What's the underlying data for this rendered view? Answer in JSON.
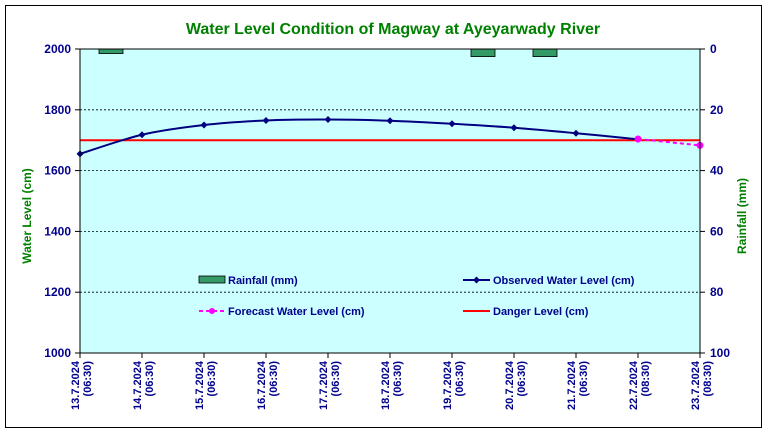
{
  "chart_data": {
    "type": "line",
    "title": "Water Level Condition of Magway at Ayeyarwady River",
    "ylabel": "Water Level (cm)",
    "y2label": "Rainfall (mm)",
    "ylim": [
      1000,
      2000
    ],
    "y2lim": [
      0,
      100
    ],
    "y2_inverted": true,
    "yticks": [
      "1000",
      "1200",
      "1400",
      "1600",
      "1800",
      "2000"
    ],
    "y2ticks": [
      "0",
      "20",
      "40",
      "60",
      "80",
      "100"
    ],
    "categories": [
      "13.7.2024 (06:30)",
      "14.7.2024 (06:30)",
      "15.7.2024 (06:30)",
      "16.7.2024 (06:30)",
      "17.7.2024 (06:30)",
      "18.7.2024 (06:30)",
      "19.7.2024 (06:30)",
      "20.7.2024 (06:30)",
      "21.7.2024 (06:30)",
      "22.7.2024 (08:30)",
      "23.7.2024 (08:30)"
    ],
    "series": [
      {
        "name": "Rainfall (mm)",
        "type": "bar",
        "axis": "right",
        "values": [
          0,
          1.5,
          0,
          0,
          0,
          0,
          0,
          2.5,
          2.5,
          0,
          0
        ]
      },
      {
        "name": "Observed Water Level (cm)",
        "type": "line",
        "values": [
          1655,
          1718,
          1750,
          1765,
          1768,
          1764,
          1754,
          1741,
          1723,
          1703,
          null
        ]
      },
      {
        "name": "Forecast Water Level (cm)",
        "type": "line",
        "dashed": true,
        "values": [
          null,
          null,
          null,
          null,
          null,
          null,
          null,
          null,
          null,
          1704,
          1683
        ]
      },
      {
        "name": "Danger Level (cm)",
        "type": "hline",
        "value": 1700
      }
    ],
    "grid": "horizontal dashed",
    "legend_position": "inside-bottom",
    "colors": {
      "plot_bg": "#ccffff",
      "title": "#008000",
      "axis_labels": "#008000",
      "ticks": "#00008b",
      "observed": "#000080",
      "forecast": "#ff00ff",
      "danger": "#ff0000",
      "rain_fill": "#339966"
    }
  }
}
